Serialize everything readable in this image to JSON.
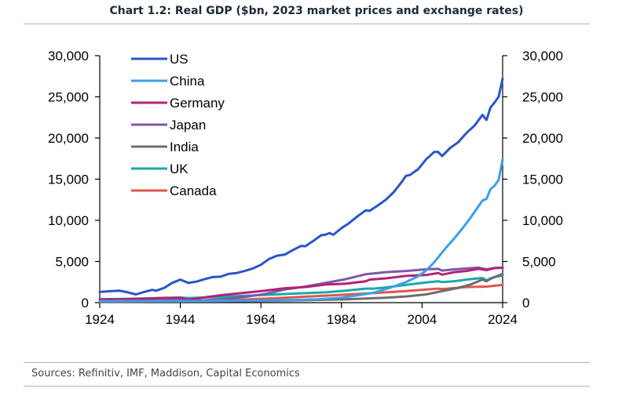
{
  "title": "Chart 1.2: Real GDP ($bn, 2023 market prices and exchange rates)",
  "source": "Sources: Refinitiv, IMF, Maddison, Capital Economics",
  "chart_data": {
    "type": "line",
    "title": "Chart 1.2: Real GDP ($bn, 2023 market prices and exchange rates)",
    "xlabel": "",
    "ylabel": "",
    "xlim": [
      1924,
      2024
    ],
    "ylim": [
      0,
      30000
    ],
    "x_ticks": [
      "1924",
      "1944",
      "1964",
      "1984",
      "2004",
      "2024"
    ],
    "y_ticks_left": [
      "0",
      "5,000",
      "10,000",
      "15,000",
      "20,000",
      "25,000",
      "30,000"
    ],
    "y_ticks_right": [
      "0",
      "5,000",
      "10,000",
      "15,000",
      "20,000",
      "25,000",
      "30,000"
    ],
    "grid": false,
    "legend_position": "top-left",
    "series": [
      {
        "name": "US",
        "color": "#2a55c4",
        "points": [
          [
            1924,
            1300
          ],
          [
            1927,
            1400
          ],
          [
            1929,
            1450
          ],
          [
            1931,
            1250
          ],
          [
            1933,
            1000
          ],
          [
            1935,
            1300
          ],
          [
            1937,
            1550
          ],
          [
            1938,
            1450
          ],
          [
            1940,
            1800
          ],
          [
            1942,
            2400
          ],
          [
            1944,
            2800
          ],
          [
            1946,
            2400
          ],
          [
            1948,
            2550
          ],
          [
            1950,
            2850
          ],
          [
            1952,
            3100
          ],
          [
            1954,
            3150
          ],
          [
            1956,
            3500
          ],
          [
            1958,
            3600
          ],
          [
            1960,
            3850
          ],
          [
            1962,
            4150
          ],
          [
            1964,
            4600
          ],
          [
            1966,
            5300
          ],
          [
            1968,
            5700
          ],
          [
            1970,
            5850
          ],
          [
            1972,
            6400
          ],
          [
            1974,
            6900
          ],
          [
            1975,
            6850
          ],
          [
            1977,
            7500
          ],
          [
            1979,
            8200
          ],
          [
            1980,
            8250
          ],
          [
            1981,
            8450
          ],
          [
            1982,
            8250
          ],
          [
            1984,
            9050
          ],
          [
            1986,
            9700
          ],
          [
            1988,
            10500
          ],
          [
            1990,
            11200
          ],
          [
            1991,
            11150
          ],
          [
            1993,
            11800
          ],
          [
            1995,
            12500
          ],
          [
            1997,
            13450
          ],
          [
            1999,
            14700
          ],
          [
            2000,
            15400
          ],
          [
            2001,
            15500
          ],
          [
            2003,
            16200
          ],
          [
            2005,
            17400
          ],
          [
            2007,
            18300
          ],
          [
            2008,
            18300
          ],
          [
            2009,
            17800
          ],
          [
            2011,
            18800
          ],
          [
            2013,
            19500
          ],
          [
            2015,
            20600
          ],
          [
            2017,
            21500
          ],
          [
            2019,
            22800
          ],
          [
            2020,
            22200
          ],
          [
            2021,
            23700
          ],
          [
            2022,
            24300
          ],
          [
            2023,
            25000
          ],
          [
            2024,
            27200
          ]
        ]
      },
      {
        "name": "China",
        "color": "#3d9ee8",
        "points": [
          [
            1924,
            200
          ],
          [
            1944,
            200
          ],
          [
            1960,
            250
          ],
          [
            1970,
            300
          ],
          [
            1978,
            400
          ],
          [
            1984,
            600
          ],
          [
            1988,
            900
          ],
          [
            1992,
            1200
          ],
          [
            1996,
            1800
          ],
          [
            2000,
            2500
          ],
          [
            2003,
            3200
          ],
          [
            2005,
            3900
          ],
          [
            2007,
            4900
          ],
          [
            2008,
            5500
          ],
          [
            2010,
            6700
          ],
          [
            2012,
            7800
          ],
          [
            2014,
            9000
          ],
          [
            2016,
            10300
          ],
          [
            2018,
            11700
          ],
          [
            2019,
            12400
          ],
          [
            2020,
            12600
          ],
          [
            2021,
            13800
          ],
          [
            2022,
            14200
          ],
          [
            2023,
            14900
          ],
          [
            2024,
            17400
          ]
        ]
      },
      {
        "name": "Germany",
        "color": "#b0237a",
        "points": [
          [
            1924,
            400
          ],
          [
            1930,
            430
          ],
          [
            1936,
            500
          ],
          [
            1940,
            580
          ],
          [
            1944,
            600
          ],
          [
            1946,
            350
          ],
          [
            1950,
            650
          ],
          [
            1955,
            950
          ],
          [
            1960,
            1200
          ],
          [
            1965,
            1450
          ],
          [
            1970,
            1750
          ],
          [
            1975,
            1900
          ],
          [
            1980,
            2200
          ],
          [
            1985,
            2300
          ],
          [
            1990,
            2600
          ],
          [
            1991,
            2800
          ],
          [
            1995,
            2950
          ],
          [
            2000,
            3250
          ],
          [
            2005,
            3350
          ],
          [
            2008,
            3600
          ],
          [
            2009,
            3400
          ],
          [
            2012,
            3700
          ],
          [
            2015,
            3850
          ],
          [
            2018,
            4100
          ],
          [
            2020,
            3950
          ],
          [
            2022,
            4200
          ],
          [
            2024,
            4250
          ]
        ]
      },
      {
        "name": "Japan",
        "color": "#7d58a8",
        "points": [
          [
            1924,
            150
          ],
          [
            1935,
            250
          ],
          [
            1944,
            350
          ],
          [
            1946,
            250
          ],
          [
            1950,
            300
          ],
          [
            1955,
            450
          ],
          [
            1960,
            700
          ],
          [
            1965,
            1050
          ],
          [
            1970,
            1600
          ],
          [
            1975,
            1950
          ],
          [
            1980,
            2400
          ],
          [
            1985,
            2850
          ],
          [
            1990,
            3450
          ],
          [
            1992,
            3550
          ],
          [
            1995,
            3700
          ],
          [
            2000,
            3850
          ],
          [
            2005,
            4050
          ],
          [
            2008,
            4100
          ],
          [
            2009,
            3900
          ],
          [
            2012,
            4050
          ],
          [
            2015,
            4150
          ],
          [
            2018,
            4250
          ],
          [
            2020,
            4050
          ],
          [
            2022,
            4200
          ],
          [
            2024,
            4250
          ]
        ]
      },
      {
        "name": "India",
        "color": "#6d6d6d",
        "points": [
          [
            1924,
            100
          ],
          [
            1950,
            150
          ],
          [
            1965,
            220
          ],
          [
            1975,
            300
          ],
          [
            1985,
            400
          ],
          [
            1990,
            500
          ],
          [
            1995,
            600
          ],
          [
            2000,
            750
          ],
          [
            2005,
            1000
          ],
          [
            2008,
            1300
          ],
          [
            2010,
            1500
          ],
          [
            2013,
            1800
          ],
          [
            2016,
            2200
          ],
          [
            2018,
            2600
          ],
          [
            2019,
            2800
          ],
          [
            2020,
            2600
          ],
          [
            2021,
            2900
          ],
          [
            2022,
            3100
          ],
          [
            2023,
            3300
          ],
          [
            2024,
            3500
          ]
        ]
      },
      {
        "name": "UK",
        "color": "#19a9a9",
        "points": [
          [
            1924,
            400
          ],
          [
            1930,
            450
          ],
          [
            1940,
            560
          ],
          [
            1944,
            620
          ],
          [
            1946,
            560
          ],
          [
            1950,
            630
          ],
          [
            1960,
            830
          ],
          [
            1970,
            1050
          ],
          [
            1975,
            1150
          ],
          [
            1980,
            1250
          ],
          [
            1985,
            1450
          ],
          [
            1990,
            1700
          ],
          [
            1992,
            1700
          ],
          [
            1995,
            1850
          ],
          [
            2000,
            2150
          ],
          [
            2005,
            2450
          ],
          [
            2008,
            2600
          ],
          [
            2009,
            2500
          ],
          [
            2012,
            2600
          ],
          [
            2015,
            2800
          ],
          [
            2018,
            2950
          ],
          [
            2019,
            3000
          ],
          [
            2020,
            2700
          ],
          [
            2021,
            2950
          ],
          [
            2022,
            3100
          ],
          [
            2024,
            3300
          ]
        ]
      },
      {
        "name": "Canada",
        "color": "#e0564b",
        "points": [
          [
            1924,
            100
          ],
          [
            1940,
            150
          ],
          [
            1950,
            250
          ],
          [
            1960,
            380
          ],
          [
            1970,
            600
          ],
          [
            1980,
            850
          ],
          [
            1990,
            1100
          ],
          [
            2000,
            1400
          ],
          [
            2005,
            1600
          ],
          [
            2008,
            1700
          ],
          [
            2009,
            1650
          ],
          [
            2015,
            1900
          ],
          [
            2020,
            1950
          ],
          [
            2024,
            2150
          ]
        ]
      }
    ]
  }
}
